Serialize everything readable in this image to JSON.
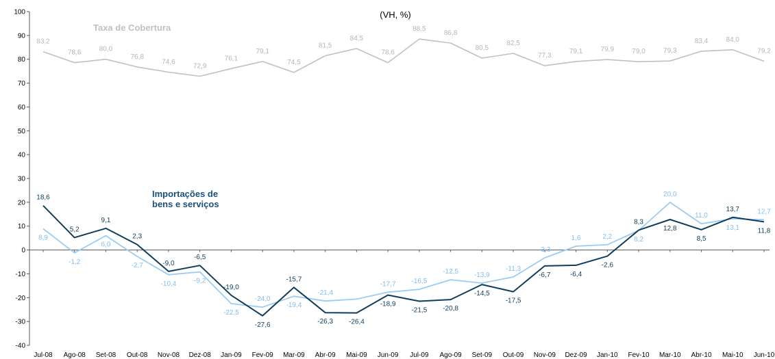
{
  "chart_data": {
    "type": "line",
    "title": "(VH, %)",
    "xlabel": "",
    "ylabel": "",
    "ylim": [
      -40,
      100
    ],
    "yticks": [
      -40,
      -30,
      -20,
      -10,
      0,
      10,
      20,
      30,
      40,
      50,
      60,
      70,
      80,
      90,
      100
    ],
    "grid": false,
    "categories": [
      "Jul-08",
      "Ago-08",
      "Set-08",
      "Out-08",
      "Nov-08",
      "Dez-08",
      "Jan-09",
      "Fev-09",
      "Mar-09",
      "Abr-09",
      "Mai-09",
      "Jun-09",
      "Jul-09",
      "Ago-09",
      "Set-09",
      "Out-09",
      "Nov-09",
      "Dez-09",
      "Jan-10",
      "Fev-10",
      "Mar-10",
      "Abr-10",
      "Mai-10",
      "Jun-10"
    ],
    "series": [
      {
        "name": "Taxa de Cobertura",
        "color": "#c0c0c0",
        "values": [
          83.2,
          78.6,
          80.0,
          76.8,
          74.6,
          72.9,
          76.1,
          79.1,
          74.5,
          81.5,
          84.5,
          78.6,
          88.5,
          86.8,
          80.5,
          82.5,
          77.3,
          79.1,
          79.9,
          79.0,
          79.3,
          83.4,
          84.0,
          79.2
        ],
        "labels": [
          "83,2",
          "78,6",
          "80,0",
          "76,8",
          "74,6",
          "72,9",
          "76,1",
          "79,1",
          "74,5",
          "81,5",
          "84,5",
          "78,6",
          "88,5",
          "86,8",
          "80,5",
          "82,5",
          "77,3",
          "79,1",
          "79,9",
          "79,0",
          "79,3",
          "83,4",
          "84,0",
          "79,2"
        ]
      },
      {
        "name": "Importações de bens e serviços",
        "color": "#0f3c5a",
        "values": [
          18.6,
          5.2,
          9.1,
          2.3,
          -9.0,
          -6.5,
          -19.0,
          -27.6,
          -15.7,
          -26.3,
          -26.4,
          -18.9,
          -21.5,
          -20.8,
          -14.5,
          -17.5,
          -6.7,
          -6.4,
          -2.6,
          8.3,
          12.8,
          8.5,
          13.7,
          11.8
        ],
        "labels": [
          "18,6",
          "5,2",
          "9,1",
          "2,3",
          "-9,0",
          "-6,5",
          "-19,0",
          "-27,6",
          "-15,7",
          "-26,3",
          "-26,4",
          "-18,9",
          "-21,5",
          "-20,8",
          "-14,5",
          "-17,5",
          "-6,7",
          "-6,4",
          "-2,6",
          "8,3",
          "12,8",
          "8,5",
          "13,7",
          "11,8"
        ]
      },
      {
        "name": "",
        "color": "#99ccf5",
        "values": [
          8.9,
          -1.2,
          6.0,
          -2.7,
          -10.4,
          -9.2,
          -22.5,
          -24.0,
          -19.4,
          -21.4,
          -20.6,
          -17.7,
          -16.5,
          -12.5,
          -13.9,
          -11.3,
          -3.3,
          1.6,
          2.2,
          8.2,
          20.0,
          11.0,
          13.1,
          12.7
        ],
        "labels": [
          "8,9",
          "-1,2",
          "6,0",
          "-2,7",
          "-10,4",
          "-9,2",
          "-22,5",
          "-24,0",
          "-19,4",
          "-21,4",
          "",
          "-17,7",
          "-16,5",
          "-12,5",
          "-13,9",
          "-11,3",
          "-3,3",
          "1,6",
          "2,2",
          "8,2",
          "20,0",
          "11,0",
          "13,1",
          "12,7"
        ]
      }
    ],
    "annotations": [
      {
        "text": "Taxa de Cobertura",
        "color": "#c0c0c0"
      },
      {
        "text": "Importações de",
        "color": "#1a4f7a"
      },
      {
        "text": "bens e serviços",
        "color": "#1a4f7a"
      }
    ]
  }
}
